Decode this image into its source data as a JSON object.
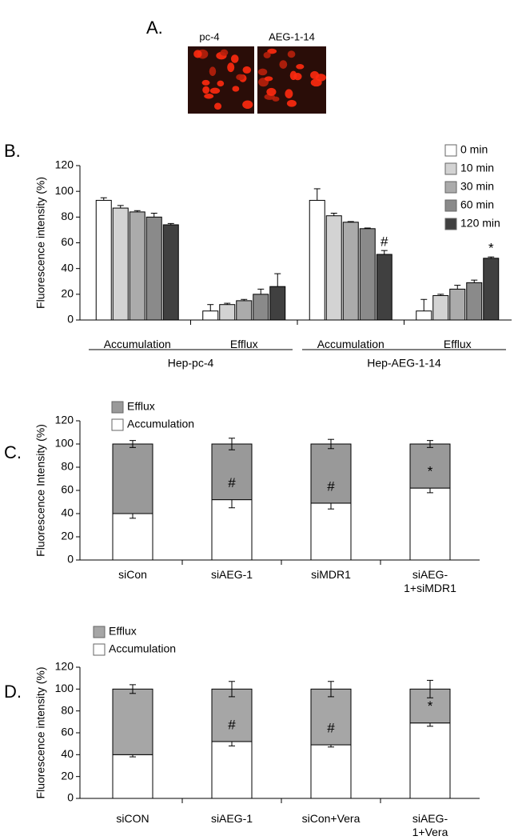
{
  "panel_a": {
    "label": "A.",
    "images": [
      "pc-4",
      "AEG-1-14"
    ]
  },
  "chart_data": [
    {
      "type": "bar",
      "panel_label": "B.",
      "ylabel": "Fluorescence intensity (%)",
      "categories": [
        "Accumulation",
        "Efflux",
        "Accumulation",
        "Efflux"
      ],
      "category_groups": [
        "Hep-pc-4",
        "Hep-AEG-1-14"
      ],
      "ylim": [
        0,
        120
      ],
      "yticks": [
        0,
        20,
        40,
        60,
        80,
        100,
        120
      ],
      "legend": "upper right",
      "series": [
        {
          "name": "0 min",
          "color": "#ffffff",
          "values": [
            93,
            7,
            93,
            7
          ],
          "errors": [
            2,
            5,
            9,
            9
          ],
          "annotations": [
            null,
            null,
            null,
            null
          ]
        },
        {
          "name": "10 min",
          "color": "#d3d3d3",
          "values": [
            87,
            12,
            81,
            19
          ],
          "errors": [
            2,
            1,
            2,
            1
          ],
          "annotations": [
            null,
            null,
            null,
            null
          ]
        },
        {
          "name": "30 min",
          "color": "#ababab",
          "values": [
            84,
            15,
            76,
            24
          ],
          "errors": [
            1,
            1,
            0.5,
            3
          ],
          "annotations": [
            null,
            null,
            null,
            null
          ]
        },
        {
          "name": "60 min",
          "color": "#8a8a8a",
          "values": [
            80,
            20,
            71,
            29
          ],
          "errors": [
            3,
            4,
            0.5,
            2
          ],
          "annotations": [
            null,
            null,
            null,
            null
          ]
        },
        {
          "name": "120 min",
          "color": "#404040",
          "values": [
            74,
            26,
            51,
            48
          ],
          "errors": [
            1,
            10,
            3,
            1
          ],
          "annotations": [
            null,
            null,
            "#",
            "*"
          ]
        }
      ]
    },
    {
      "type": "stacked_bar",
      "panel_label": "C.",
      "ylabel": "Fluorescence Intensity (%)",
      "categories": [
        "siCon",
        "siAEG-1",
        "siMDR1",
        "siAEG-1+siMDR1"
      ],
      "ylim": [
        0,
        120
      ],
      "yticks": [
        0,
        20,
        40,
        60,
        80,
        100,
        120
      ],
      "legend": "upper left",
      "series": [
        {
          "name": "Accumulation",
          "color": "#ffffff",
          "values": [
            40,
            52,
            49,
            62
          ],
          "errors": [
            4,
            7,
            5,
            4
          ],
          "annotations": [
            null,
            null,
            null,
            null
          ]
        },
        {
          "name": "Efflux",
          "color": "#999999",
          "values": [
            60,
            48,
            51,
            38
          ],
          "errors": [
            3,
            5,
            4,
            3
          ],
          "annotations": [
            null,
            "#",
            "#",
            "*"
          ]
        }
      ]
    },
    {
      "type": "stacked_bar",
      "panel_label": "D.",
      "ylabel": "Fluorescence intensity (%)",
      "categories": [
        "siCON",
        "siAEG-1",
        "siCon+Vera",
        "siAEG-1+Vera"
      ],
      "ylim": [
        0,
        120
      ],
      "yticks": [
        0,
        20,
        40,
        60,
        80,
        100,
        120
      ],
      "legend": "upper left",
      "series": [
        {
          "name": "Accumulation",
          "color": "#ffffff",
          "values": [
            40,
            52,
            49,
            69
          ],
          "errors": [
            2,
            4,
            2,
            3
          ],
          "annotations": [
            null,
            null,
            null,
            null
          ]
        },
        {
          "name": "Efflux",
          "color": "#a6a6a6",
          "values": [
            60,
            48,
            51,
            31
          ],
          "errors": [
            4,
            7,
            7,
            8
          ],
          "annotations": [
            null,
            "#",
            "#",
            "*"
          ]
        }
      ]
    }
  ]
}
